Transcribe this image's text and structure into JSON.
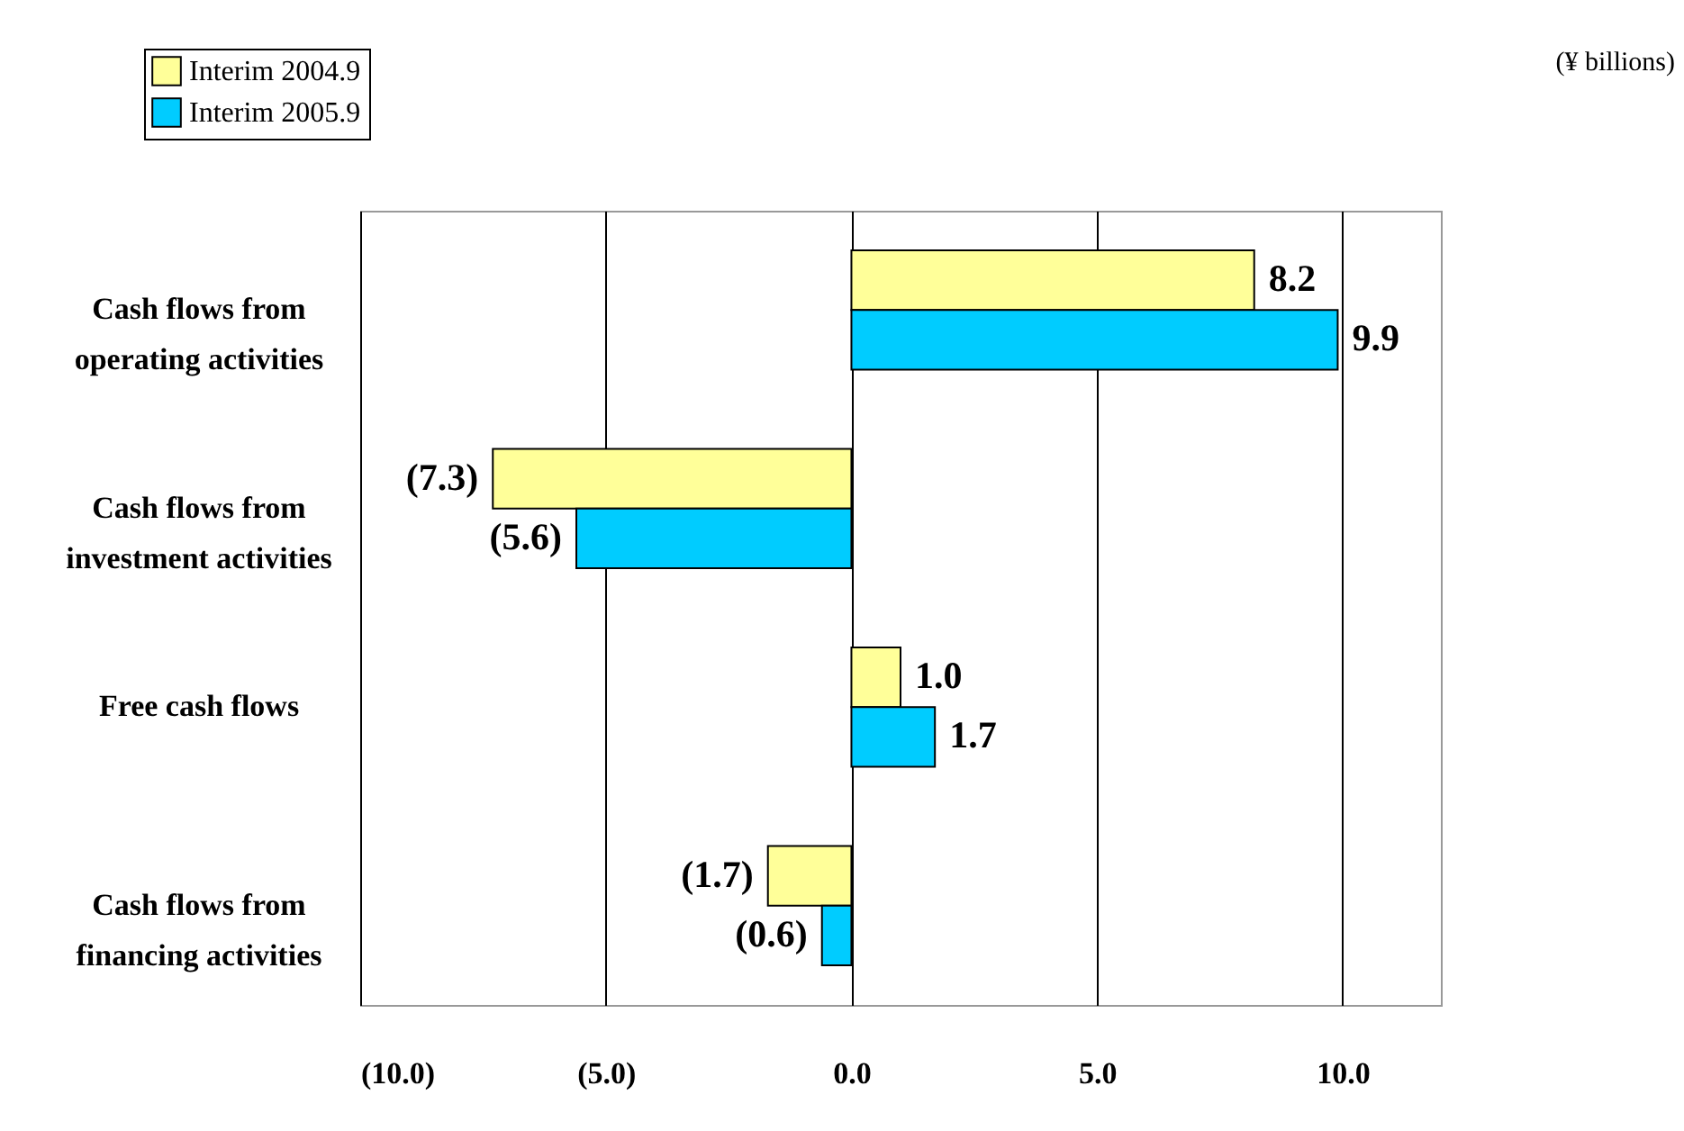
{
  "chart_data": {
    "type": "bar",
    "orientation": "horizontal",
    "annotations": [
      "(¥ billions)"
    ],
    "categories": [
      "Cash flows from operating activities",
      "Cash flows from investment activities",
      "Free cash flows",
      "Cash flows from financing activities"
    ],
    "series": [
      {
        "name": "Interim 2004.9",
        "color": "#ffff99",
        "values": [
          8.2,
          -7.3,
          1.0,
          -1.7
        ],
        "value_labels": [
          "8.2",
          "(7.3)",
          "1.0",
          "(1.7)"
        ]
      },
      {
        "name": "Interim 2005.9",
        "color": "#00ccff",
        "values": [
          9.9,
          -5.6,
          1.7,
          -0.6
        ],
        "value_labels": [
          "9.9",
          "(5.6)",
          "1.7",
          "(0.6)"
        ]
      }
    ],
    "xlim": [
      -10,
      12
    ],
    "xticks": [
      {
        "value": -10,
        "label": "(10.0)"
      },
      {
        "value": -5,
        "label": "(5.0)"
      },
      {
        "value": 0,
        "label": "0.0"
      },
      {
        "value": 5,
        "label": "5.0"
      },
      {
        "value": 10,
        "label": "10.0"
      }
    ],
    "grid": "x",
    "legend": "top left"
  }
}
